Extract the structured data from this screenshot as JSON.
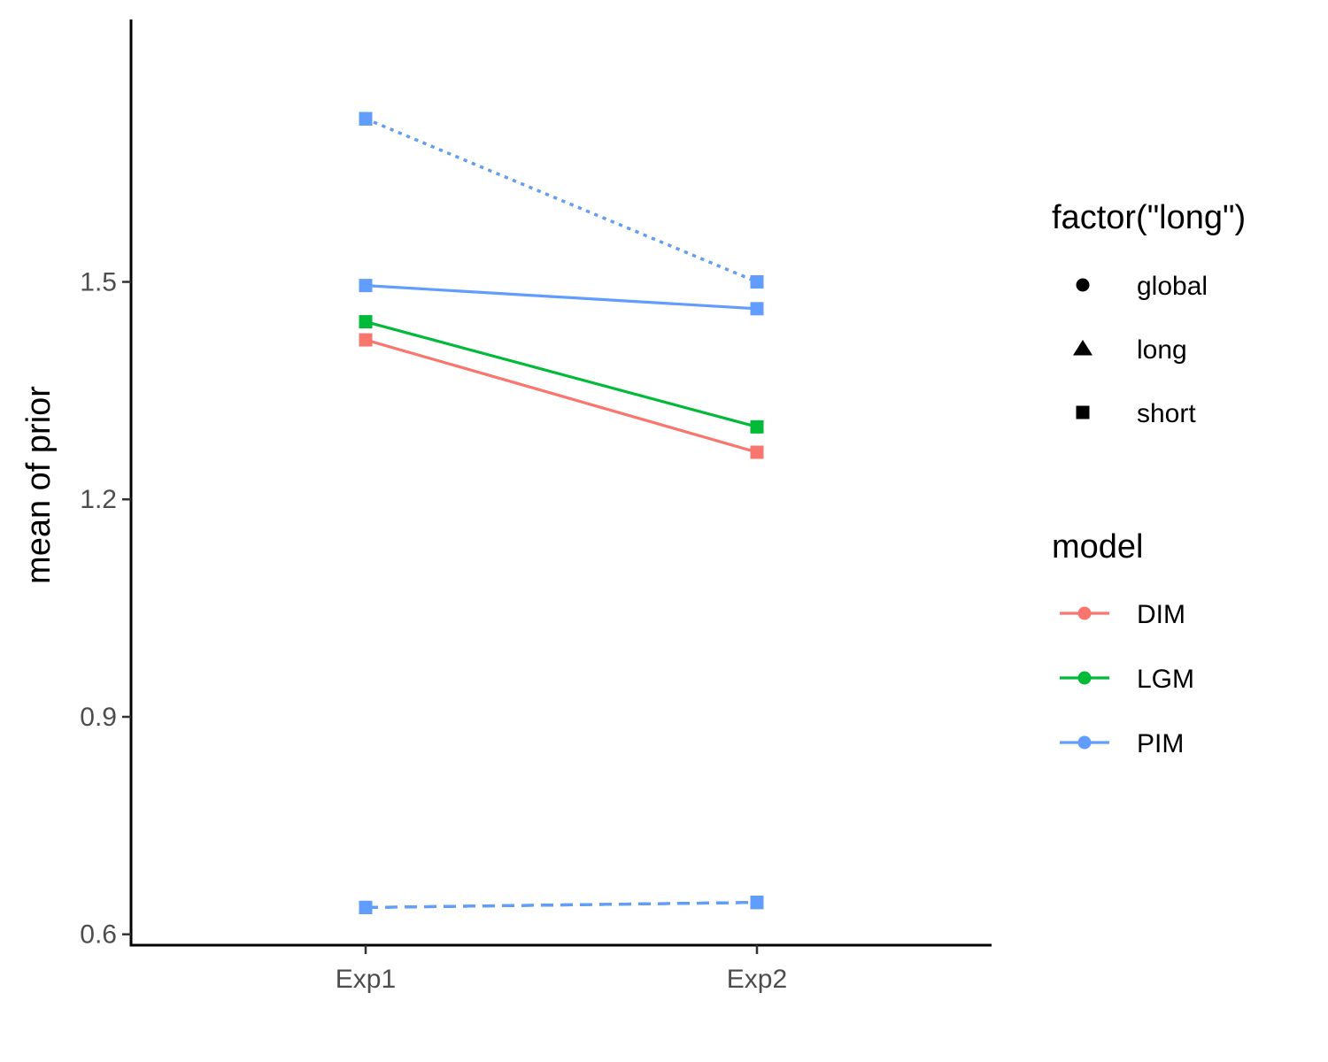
{
  "chart_data": {
    "type": "line",
    "title": "",
    "xlabel": "",
    "ylabel": "mean of prior",
    "categories": [
      "Exp1",
      "Exp2"
    ],
    "yticks": [
      0.6,
      0.9,
      1.2,
      1.5
    ],
    "ytick_labels": [
      "0.6",
      "0.9",
      "1.2",
      "1.5"
    ],
    "ylim": [
      0.585,
      1.862
    ],
    "grid": false,
    "legend_position": "right",
    "series": [
      {
        "model": "DIM",
        "shape": "global",
        "linetype": "solid",
        "values": [
          1.42,
          1.265
        ]
      },
      {
        "model": "LGM",
        "shape": "global",
        "linetype": "solid",
        "values": [
          1.445,
          1.3
        ]
      },
      {
        "model": "PIM",
        "shape": "global",
        "linetype": "solid",
        "values": [
          1.495,
          1.463
        ]
      },
      {
        "model": "DIM",
        "shape": "long",
        "linetype": "dotted",
        "values": [
          1.725,
          1.5
        ]
      },
      {
        "model": "LGM",
        "shape": "long",
        "linetype": "dotted",
        "values": [
          1.725,
          1.5
        ]
      },
      {
        "model": "PIM",
        "shape": "long",
        "linetype": "dotted",
        "values": [
          1.725,
          1.5
        ]
      },
      {
        "model": "DIM",
        "shape": "short",
        "linetype": "dashed",
        "values": [
          0.637,
          0.644
        ]
      },
      {
        "model": "LGM",
        "shape": "short",
        "linetype": "dashed",
        "values": [
          0.637,
          0.644
        ]
      },
      {
        "model": "PIM",
        "shape": "short",
        "linetype": "dashed",
        "values": [
          0.637,
          0.644
        ]
      }
    ],
    "legends": [
      {
        "title": "factor(\"long\")",
        "items": [
          {
            "label": "global",
            "shape": "circle"
          },
          {
            "label": "long",
            "shape": "triangle"
          },
          {
            "label": "short",
            "shape": "square"
          }
        ]
      },
      {
        "title": "model",
        "items": [
          {
            "label": "DIM",
            "color": "#F8766D"
          },
          {
            "label": "LGM",
            "color": "#00BA38"
          },
          {
            "label": "PIM",
            "color": "#619CFF"
          }
        ]
      }
    ],
    "colors": {
      "DIM": "#F8766D",
      "LGM": "#00BA38",
      "PIM": "#619CFF"
    }
  }
}
